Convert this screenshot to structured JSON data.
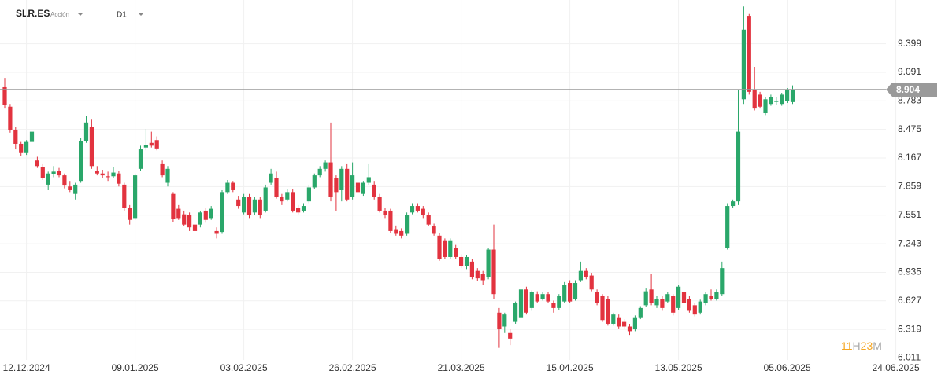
{
  "chart_data": {
    "type": "candlestick",
    "symbol": "SLR.ES",
    "asset_type": "Acción",
    "timeframe": "D1",
    "categories": [
      null,
      null,
      null,
      null,
      "12.12.2024",
      null,
      null,
      null,
      null,
      null,
      null,
      null,
      null,
      null,
      null,
      null,
      null,
      null,
      null,
      null,
      null,
      null,
      null,
      null,
      "09.01.2025",
      null,
      null,
      null,
      null,
      null,
      null,
      null,
      null,
      null,
      null,
      null,
      null,
      null,
      null,
      null,
      null,
      null,
      null,
      null,
      "03.02.2025",
      null,
      null,
      null,
      null,
      null,
      null,
      null,
      null,
      null,
      null,
      null,
      null,
      null,
      null,
      null,
      null,
      null,
      null,
      null,
      "26.02.2025",
      null,
      null,
      null,
      null,
      null,
      null,
      null,
      null,
      null,
      null,
      null,
      null,
      null,
      null,
      null,
      null,
      null,
      null,
      null,
      "21.03.2025",
      null,
      null,
      null,
      null,
      null,
      null,
      null,
      null,
      null,
      null,
      null,
      null,
      null,
      null,
      null,
      null,
      null,
      null,
      null,
      "15.04.2025",
      null,
      null,
      null,
      null,
      null,
      null,
      null,
      null,
      null,
      null,
      null,
      null,
      null,
      null,
      null,
      null,
      null,
      null,
      null,
      "13.05.2025",
      null,
      null,
      null,
      null,
      null,
      null,
      null,
      null,
      null,
      null,
      null,
      null,
      null,
      null,
      null,
      null,
      null,
      null,
      null,
      "05.06.2025",
      null,
      null,
      null,
      null,
      null,
      null,
      null,
      null,
      null,
      null,
      null,
      null,
      null,
      null,
      null,
      null,
      null,
      null,
      null,
      "24.06.2025"
    ],
    "ohlc": [
      [
        8.93,
        9.03,
        8.7,
        8.74
      ],
      [
        8.72,
        8.75,
        8.44,
        8.47
      ],
      [
        8.47,
        8.5,
        8.26,
        8.32
      ],
      [
        8.32,
        8.34,
        8.19,
        8.22
      ],
      [
        8.22,
        8.36,
        8.2,
        8.34
      ],
      [
        8.34,
        8.48,
        8.32,
        8.45
      ],
      [
        8.14,
        8.18,
        8.06,
        8.08
      ],
      [
        8.07,
        8.1,
        7.93,
        7.95
      ],
      [
        7.88,
        8.02,
        7.82,
        8.0
      ],
      [
        7.99,
        8.08,
        7.96,
        8.02
      ],
      [
        8.03,
        8.06,
        7.96,
        7.98
      ],
      [
        7.98,
        8.0,
        7.84,
        7.87
      ],
      [
        7.86,
        7.92,
        7.8,
        7.82
      ],
      [
        7.78,
        7.9,
        7.72,
        7.88
      ],
      [
        7.92,
        8.38,
        7.9,
        8.35
      ],
      [
        8.35,
        8.62,
        8.33,
        8.55
      ],
      [
        8.5,
        8.58,
        8.05,
        8.08
      ],
      [
        8.03,
        8.08,
        7.98,
        8.0
      ],
      [
        8.0,
        8.04,
        7.95,
        7.98
      ],
      [
        7.97,
        8.02,
        7.92,
        7.96
      ],
      [
        7.97,
        8.07,
        7.95,
        8.01
      ],
      [
        8.0,
        8.03,
        7.86,
        7.89
      ],
      [
        7.88,
        7.9,
        7.6,
        7.63
      ],
      [
        7.63,
        7.66,
        7.45,
        7.5
      ],
      [
        7.52,
        8.0,
        7.5,
        7.98
      ],
      [
        8.05,
        8.3,
        8.03,
        8.26
      ],
      [
        8.28,
        8.48,
        8.25,
        8.31
      ],
      [
        8.33,
        8.45,
        8.28,
        8.3
      ],
      [
        8.36,
        8.4,
        8.25,
        8.27
      ],
      [
        8.1,
        8.14,
        7.96,
        7.98
      ],
      [
        7.9,
        8.08,
        7.86,
        8.05
      ],
      [
        7.78,
        7.8,
        7.48,
        7.51
      ],
      [
        7.62,
        7.66,
        7.5,
        7.52
      ],
      [
        7.56,
        7.6,
        7.43,
        7.45
      ],
      [
        7.55,
        7.58,
        7.38,
        7.42
      ],
      [
        7.45,
        7.5,
        7.3,
        7.38
      ],
      [
        7.45,
        7.6,
        7.42,
        7.58
      ],
      [
        7.6,
        7.63,
        7.47,
        7.5
      ],
      [
        7.52,
        7.65,
        7.5,
        7.62
      ],
      [
        7.38,
        7.42,
        7.3,
        7.35
      ],
      [
        7.37,
        7.82,
        7.35,
        7.8
      ],
      [
        7.8,
        7.93,
        7.78,
        7.9
      ],
      [
        7.9,
        7.92,
        7.8,
        7.82
      ],
      [
        7.72,
        7.76,
        7.62,
        7.65
      ],
      [
        7.58,
        7.78,
        7.56,
        7.75
      ],
      [
        7.75,
        7.78,
        7.52,
        7.55
      ],
      [
        7.58,
        7.75,
        7.55,
        7.72
      ],
      [
        7.72,
        7.75,
        7.52,
        7.55
      ],
      [
        7.6,
        7.88,
        7.58,
        7.85
      ],
      [
        7.9,
        8.05,
        7.88,
        8.0
      ],
      [
        7.95,
        8.02,
        7.73,
        7.75
      ],
      [
        7.75,
        7.78,
        7.66,
        7.7
      ],
      [
        7.72,
        7.83,
        7.7,
        7.8
      ],
      [
        7.8,
        7.83,
        7.58,
        7.6
      ],
      [
        7.63,
        7.66,
        7.56,
        7.58
      ],
      [
        7.6,
        7.68,
        7.58,
        7.65
      ],
      [
        7.7,
        7.88,
        7.68,
        7.85
      ],
      [
        7.85,
        8.0,
        7.83,
        7.98
      ],
      [
        7.98,
        8.08,
        7.96,
        8.05
      ],
      [
        8.05,
        8.14,
        8.02,
        8.12
      ],
      [
        8.12,
        8.55,
        7.7,
        7.75
      ],
      [
        7.95,
        7.98,
        7.6,
        7.8
      ],
      [
        7.82,
        8.08,
        7.7,
        8.05
      ],
      [
        8.05,
        8.1,
        7.7,
        7.72
      ],
      [
        7.75,
        8.12,
        7.72,
        7.98
      ],
      [
        7.9,
        7.94,
        7.78,
        7.8
      ],
      [
        7.78,
        7.92,
        7.76,
        7.9
      ],
      [
        7.9,
        8.1,
        7.88,
        7.96
      ],
      [
        7.88,
        7.92,
        7.72,
        7.75
      ],
      [
        7.75,
        7.78,
        7.58,
        7.6
      ],
      [
        7.6,
        7.63,
        7.52,
        7.55
      ],
      [
        7.6,
        7.62,
        7.36,
        7.38
      ],
      [
        7.4,
        7.44,
        7.33,
        7.35
      ],
      [
        7.38,
        7.41,
        7.3,
        7.33
      ],
      [
        7.35,
        7.58,
        7.33,
        7.55
      ],
      [
        7.58,
        7.68,
        7.56,
        7.65
      ],
      [
        7.65,
        7.68,
        7.58,
        7.6
      ],
      [
        7.62,
        7.65,
        7.52,
        7.55
      ],
      [
        7.55,
        7.58,
        7.43,
        7.45
      ],
      [
        7.43,
        7.46,
        7.33,
        7.35
      ],
      [
        7.33,
        7.36,
        7.06,
        7.08
      ],
      [
        7.28,
        7.3,
        7.08,
        7.1
      ],
      [
        7.1,
        7.3,
        7.08,
        7.28
      ],
      [
        7.2,
        7.23,
        7.08,
        7.1
      ],
      [
        7.1,
        7.13,
        6.98,
        7.0
      ],
      [
        7.0,
        7.12,
        6.97,
        7.1
      ],
      [
        7.05,
        7.08,
        6.86,
        6.88
      ],
      [
        6.95,
        6.98,
        6.84,
        6.87
      ],
      [
        6.92,
        6.95,
        6.8,
        6.85
      ],
      [
        6.88,
        7.2,
        6.86,
        7.18
      ],
      [
        7.18,
        7.45,
        6.65,
        6.7
      ],
      [
        6.5,
        6.55,
        6.12,
        6.32
      ],
      [
        6.35,
        6.5,
        6.28,
        6.48
      ],
      [
        6.28,
        6.32,
        6.15,
        6.22
      ],
      [
        6.4,
        6.62,
        6.38,
        6.6
      ],
      [
        6.45,
        6.78,
        6.43,
        6.75
      ],
      [
        6.75,
        6.78,
        6.48,
        6.5
      ],
      [
        6.55,
        6.74,
        6.52,
        6.72
      ],
      [
        6.7,
        6.73,
        6.6,
        6.62
      ],
      [
        6.65,
        6.72,
        6.63,
        6.7
      ],
      [
        6.7,
        6.72,
        6.6,
        6.62
      ],
      [
        6.6,
        6.63,
        6.5,
        6.55
      ],
      [
        6.55,
        6.7,
        6.53,
        6.68
      ],
      [
        6.62,
        6.83,
        6.6,
        6.8
      ],
      [
        6.82,
        6.85,
        6.6,
        6.62
      ],
      [
        6.65,
        6.85,
        6.63,
        6.82
      ],
      [
        6.85,
        7.05,
        6.83,
        6.95
      ],
      [
        6.95,
        6.98,
        6.86,
        6.88
      ],
      [
        6.9,
        6.93,
        6.73,
        6.75
      ],
      [
        6.72,
        6.75,
        6.58,
        6.6
      ],
      [
        6.68,
        6.7,
        6.4,
        6.42
      ],
      [
        6.65,
        6.68,
        6.36,
        6.38
      ],
      [
        6.38,
        6.5,
        6.36,
        6.48
      ],
      [
        6.45,
        6.48,
        6.33,
        6.35
      ],
      [
        6.4,
        6.43,
        6.33,
        6.35
      ],
      [
        6.35,
        6.38,
        6.26,
        6.3
      ],
      [
        6.32,
        6.47,
        6.3,
        6.45
      ],
      [
        6.45,
        6.57,
        6.43,
        6.55
      ],
      [
        6.58,
        6.76,
        6.56,
        6.73
      ],
      [
        6.75,
        6.92,
        6.58,
        6.6
      ],
      [
        6.58,
        6.68,
        6.55,
        6.65
      ],
      [
        6.65,
        6.68,
        6.52,
        6.55
      ],
      [
        6.62,
        6.72,
        6.6,
        6.7
      ],
      [
        6.68,
        6.7,
        6.47,
        6.5
      ],
      [
        6.55,
        6.8,
        6.53,
        6.78
      ],
      [
        6.72,
        6.9,
        6.58,
        6.6
      ],
      [
        6.65,
        6.68,
        6.5,
        6.52
      ],
      [
        6.58,
        6.6,
        6.46,
        6.48
      ],
      [
        6.5,
        6.64,
        6.48,
        6.62
      ],
      [
        6.6,
        6.72,
        6.58,
        6.7
      ],
      [
        6.68,
        6.75,
        6.63,
        6.65
      ],
      [
        6.65,
        6.75,
        6.63,
        6.72
      ],
      [
        6.7,
        7.05,
        6.68,
        6.98
      ],
      [
        7.2,
        7.68,
        7.18,
        7.65
      ],
      [
        7.65,
        7.72,
        7.63,
        7.7
      ],
      [
        7.7,
        8.9,
        7.66,
        8.45
      ],
      [
        8.8,
        9.8,
        8.75,
        9.55
      ],
      [
        9.7,
        9.72,
        8.85,
        8.88
      ],
      [
        8.9,
        9.15,
        8.68,
        8.7
      ],
      [
        8.85,
        8.88,
        8.7,
        8.72
      ],
      [
        8.65,
        8.82,
        8.63,
        8.8
      ],
      [
        8.75,
        8.85,
        8.73,
        8.82
      ],
      [
        8.78,
        8.82,
        8.74,
        8.78
      ],
      [
        8.75,
        8.87,
        8.73,
        8.85
      ],
      [
        8.78,
        8.92,
        8.76,
        8.9
      ],
      [
        8.77,
        8.95,
        8.75,
        8.904
      ],
      null,
      null,
      null,
      null,
      null,
      null,
      null,
      null,
      null,
      null,
      null,
      null,
      null,
      null,
      null,
      null,
      null,
      null,
      null
    ],
    "up_color": "#2aa76a",
    "down_color": "#e2333f",
    "last_price": 8.904,
    "ylim": [
      5.99,
      9.87
    ],
    "yticks": [
      6.011,
      6.319,
      6.627,
      6.935,
      7.243,
      7.551,
      7.859,
      8.167,
      8.475,
      8.783,
      9.091,
      9.399
    ],
    "grid": true,
    "countdown": {
      "hours": "11",
      "hours_unit": "H",
      "minutes": "23",
      "minutes_unit": "M"
    }
  }
}
